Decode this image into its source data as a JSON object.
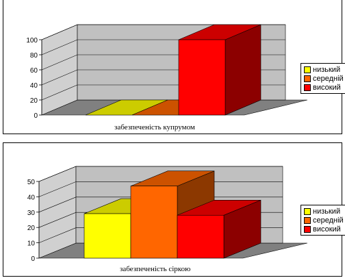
{
  "chart_data": [
    {
      "type": "bar",
      "categories": [
        "низький",
        "середній",
        "високий"
      ],
      "values": [
        0,
        0,
        100
      ],
      "xlabel": "забезпеченість купрумом",
      "ylabel": "",
      "ylim": [
        0,
        100
      ],
      "yticks": [
        "0",
        "20",
        "40",
        "60",
        "80",
        "100"
      ],
      "legend": [
        {
          "name": "низький",
          "color": "#ffff00"
        },
        {
          "name": "середній",
          "color": "#ff6600"
        },
        {
          "name": "високий",
          "color": "#ff0000"
        }
      ],
      "legend_position": "right",
      "grid": true,
      "style": "3d"
    },
    {
      "type": "bar",
      "categories": [
        "низький",
        "середній",
        "високий"
      ],
      "values": [
        29,
        47,
        28
      ],
      "xlabel": "забезпеченість сіркою",
      "ylabel": "",
      "ylim": [
        0,
        50
      ],
      "yticks": [
        "0",
        "10",
        "20",
        "30",
        "40",
        "50"
      ],
      "legend": [
        {
          "name": "низький",
          "color": "#ffff00"
        },
        {
          "name": "середній",
          "color": "#ff6600"
        },
        {
          "name": "високий",
          "color": "#ff0000"
        }
      ],
      "legend_position": "right",
      "grid": true,
      "style": "3d"
    }
  ]
}
